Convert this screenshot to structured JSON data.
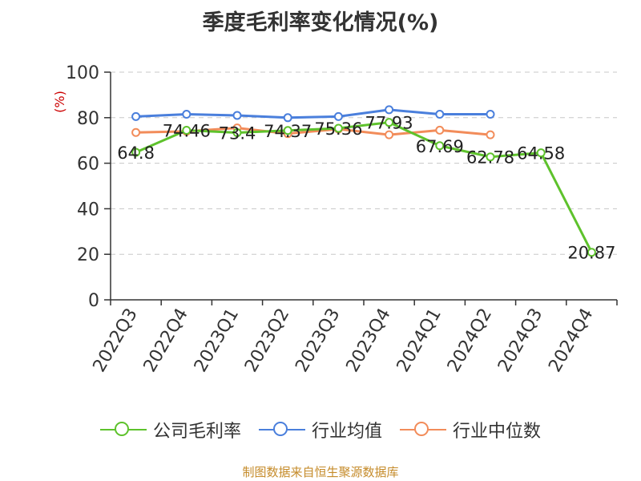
{
  "title": "季度毛利率变化情况(%)",
  "source": "制图数据来自恒生聚源数据库",
  "chart_data": {
    "type": "line",
    "title": "季度毛利率变化情况(%)",
    "ylabel": "(%)",
    "ylim": [
      0,
      100
    ],
    "yticks": [
      0,
      20,
      40,
      60,
      80,
      100
    ],
    "grid": true,
    "legend_position": "bottom",
    "categories": [
      "2022Q3",
      "2022Q4",
      "2023Q1",
      "2023Q2",
      "2023Q3",
      "2023Q4",
      "2024Q1",
      "2024Q2",
      "2024Q3",
      "2024Q4"
    ],
    "series": [
      {
        "name": "公司毛利率",
        "color": "#5ec22c",
        "values": [
          64.8,
          74.46,
          73.4,
          74.37,
          75.36,
          77.93,
          67.69,
          62.78,
          64.58,
          20.87
        ],
        "labels": [
          "64.8",
          "74.46",
          "73.4",
          "74.37",
          "75.36",
          "77.93",
          "67.69",
          "62.78",
          "64.58",
          "20.87"
        ]
      },
      {
        "name": "行业均值",
        "color": "#4a7fdc",
        "values": [
          80.5,
          81.5,
          81,
          80,
          80.5,
          83.5,
          81.5,
          81.5,
          null,
          null
        ]
      },
      {
        "name": "行业中位数",
        "color": "#f28c5a",
        "values": [
          73.5,
          74,
          75.5,
          73,
          75,
          72.5,
          74.5,
          72.5,
          null,
          null
        ]
      }
    ]
  }
}
